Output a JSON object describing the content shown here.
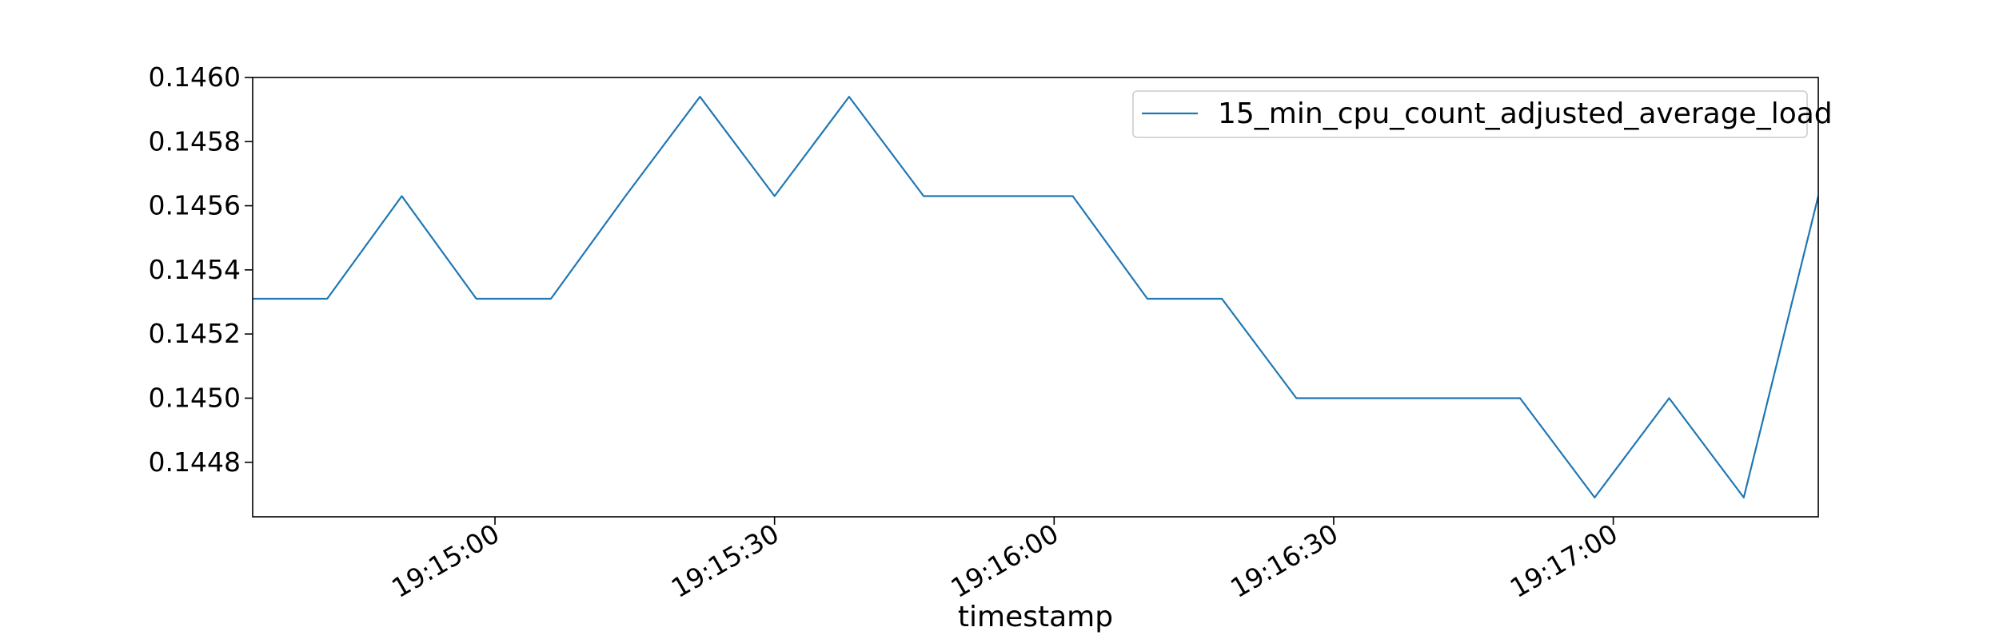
{
  "chart_data": {
    "type": "line",
    "title": "",
    "xlabel": "timestamp",
    "ylabel": "",
    "x_ticks": [
      {
        "t": "19:15:00",
        "label": "19:15:00"
      },
      {
        "t": "19:15:30",
        "label": "19:15:30"
      },
      {
        "t": "19:16:00",
        "label": "19:16:00"
      },
      {
        "t": "19:16:30",
        "label": "19:16:30"
      },
      {
        "t": "19:17:00",
        "label": "19:17:00"
      }
    ],
    "y_ticks": [
      {
        "v": 0.1448,
        "label": "0.1448"
      },
      {
        "v": 0.145,
        "label": "0.1450"
      },
      {
        "v": 0.1452,
        "label": "0.1452"
      },
      {
        "v": 0.1454,
        "label": "0.1454"
      },
      {
        "v": 0.1456,
        "label": "0.1456"
      },
      {
        "v": 0.1458,
        "label": "0.1458"
      },
      {
        "v": 0.146,
        "label": "0.1460"
      }
    ],
    "xlim": [
      "19:14:34",
      "19:17:22"
    ],
    "ylim": [
      0.14463,
      0.146
    ],
    "grid": false,
    "legend_position": "top-right",
    "series": [
      {
        "name": "15_min_cpu_count_adjusted_average_load",
        "color": "#1f77b4",
        "points": [
          {
            "t": "19:14:34",
            "y": 0.14531
          },
          {
            "t": "19:14:42",
            "y": 0.14531
          },
          {
            "t": "19:14:50",
            "y": 0.14563
          },
          {
            "t": "19:14:58",
            "y": 0.14531
          },
          {
            "t": "19:15:06",
            "y": 0.14531
          },
          {
            "t": "19:15:14",
            "y": 0.14563
          },
          {
            "t": "19:15:22",
            "y": 0.14594
          },
          {
            "t": "19:15:30",
            "y": 0.14563
          },
          {
            "t": "19:15:38",
            "y": 0.14594
          },
          {
            "t": "19:15:46",
            "y": 0.14563
          },
          {
            "t": "19:15:54",
            "y": 0.14563
          },
          {
            "t": "19:16:02",
            "y": 0.14563
          },
          {
            "t": "19:16:10",
            "y": 0.14531
          },
          {
            "t": "19:16:18",
            "y": 0.14531
          },
          {
            "t": "19:16:26",
            "y": 0.145
          },
          {
            "t": "19:16:34",
            "y": 0.145
          },
          {
            "t": "19:16:42",
            "y": 0.145
          },
          {
            "t": "19:16:50",
            "y": 0.145
          },
          {
            "t": "19:16:58",
            "y": 0.14469
          },
          {
            "t": "19:17:06",
            "y": 0.145
          },
          {
            "t": "19:17:14",
            "y": 0.14469
          },
          {
            "t": "19:17:22",
            "y": 0.14563
          }
        ]
      }
    ]
  }
}
